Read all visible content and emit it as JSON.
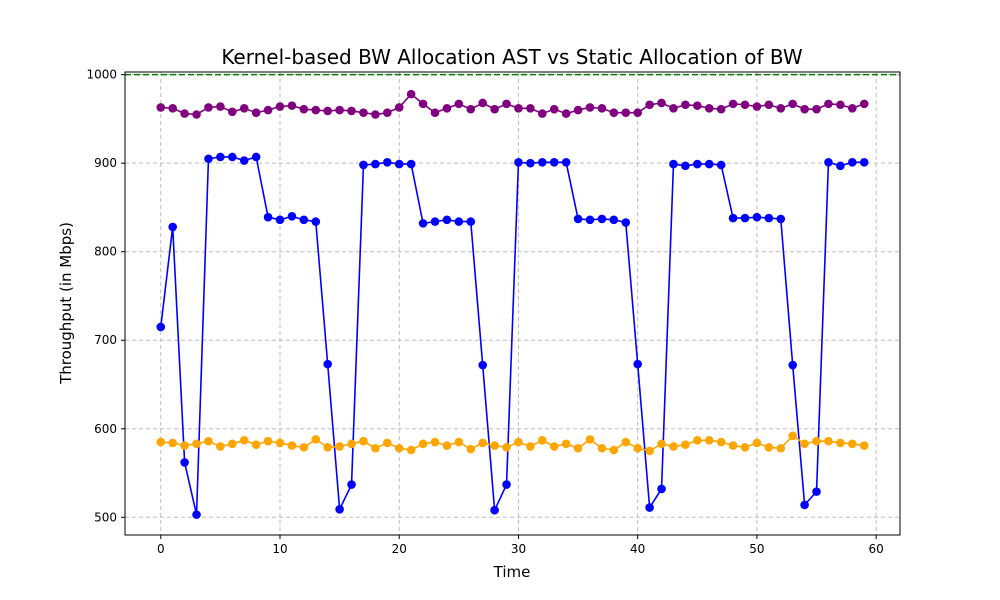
{
  "chart_data": {
    "type": "line",
    "title": "Kernel-based BW Allocation AST vs Static Allocation of BW",
    "xlabel": "Time",
    "ylabel": "Throughput (in Mbps)",
    "xlim": [
      -3,
      62
    ],
    "ylim": [
      480,
      1003
    ],
    "xticks": [
      0,
      10,
      20,
      30,
      40,
      50,
      60
    ],
    "yticks": [
      500,
      600,
      700,
      800,
      900,
      1000
    ],
    "grid": true,
    "reference_line": {
      "y": 1000,
      "color": "#008000",
      "style": "dashed"
    },
    "x": [
      0,
      1,
      2,
      3,
      4,
      5,
      6,
      7,
      8,
      9,
      10,
      11,
      12,
      13,
      14,
      15,
      16,
      17,
      18,
      19,
      20,
      21,
      22,
      23,
      24,
      25,
      26,
      27,
      28,
      29,
      30,
      31,
      32,
      33,
      34,
      35,
      36,
      37,
      38,
      39,
      40,
      41,
      42,
      43,
      44,
      45,
      46,
      47,
      48,
      49,
      50,
      51,
      52,
      53,
      54,
      55,
      56,
      57,
      58,
      59
    ],
    "series": [
      {
        "color": "#800080",
        "values": [
          963,
          962,
          956,
          955,
          963,
          964,
          958,
          962,
          957,
          960,
          964,
          965,
          961,
          960,
          959,
          960,
          959,
          957,
          955,
          957,
          963,
          978,
          967,
          957,
          962,
          967,
          961,
          968,
          961,
          967,
          962,
          962,
          956,
          961,
          956,
          960,
          963,
          962,
          957,
          957,
          957,
          966,
          968,
          962,
          966,
          965,
          962,
          961,
          967,
          966,
          964,
          966,
          962,
          967,
          961,
          961,
          967,
          966,
          962,
          967
        ]
      },
      {
        "color": "#0000ff",
        "values": [
          715,
          828,
          562,
          503,
          905,
          907,
          907,
          903,
          907,
          839,
          836,
          840,
          836,
          834,
          673,
          509,
          537,
          898,
          899,
          901,
          899,
          899,
          832,
          834,
          836,
          834,
          834,
          672,
          508,
          537,
          901,
          900,
          901,
          901,
          901,
          837,
          836,
          837,
          836,
          833,
          673,
          511,
          532,
          899,
          897,
          899,
          899,
          898,
          838,
          838,
          839,
          838,
          837,
          672,
          514,
          529,
          901,
          897,
          901,
          901
        ]
      },
      {
        "color": "#ffa500",
        "values": [
          585,
          584,
          581,
          583,
          586,
          580,
          583,
          587,
          582,
          586,
          584,
          581,
          579,
          588,
          579,
          580,
          583,
          586,
          578,
          584,
          578,
          576,
          583,
          585,
          581,
          585,
          577,
          584,
          581,
          579,
          585,
          580,
          587,
          580,
          583,
          578,
          588,
          578,
          576,
          585,
          578,
          575,
          583,
          580,
          582,
          587,
          587,
          585,
          581,
          579,
          584,
          579,
          578,
          592,
          583,
          586,
          586,
          584,
          583,
          581
        ]
      }
    ]
  }
}
